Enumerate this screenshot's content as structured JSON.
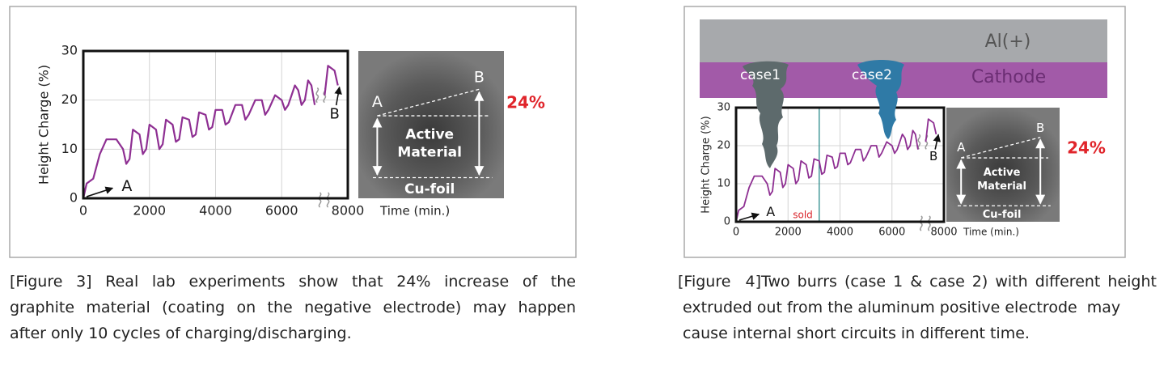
{
  "chart_data": [
    {
      "type": "line",
      "ylabel": "Height Charge (%)",
      "xlabel": "Time (min.)",
      "x": [
        0,
        100,
        300,
        500,
        700,
        1000,
        1200,
        1300,
        1400,
        1500,
        1700,
        1800,
        1900,
        2000,
        2200,
        2300,
        2400,
        2500,
        2700,
        2800,
        2900,
        3000,
        3200,
        3300,
        3400,
        3500,
        3700,
        3800,
        3900,
        4000,
        4200,
        4300,
        4400,
        4600,
        4800,
        4900,
        5000,
        5200,
        5400,
        5500,
        5600,
        5800,
        6000,
        6100,
        6200,
        6400,
        6500,
        6600,
        6700,
        6800,
        6900,
        7000,
        7100,
        7300,
        7400,
        7600,
        7700
      ],
      "series": [
        {
          "color": "#8e2f92",
          "values": [
            0,
            3,
            4,
            9,
            12,
            12,
            10,
            7,
            8,
            14,
            13,
            9,
            10,
            15,
            14,
            10,
            11,
            16,
            15,
            11.5,
            12,
            16.5,
            16,
            12.5,
            13,
            17.5,
            17,
            14,
            14.5,
            18,
            18,
            15,
            15.5,
            19,
            19,
            16,
            17,
            20,
            20,
            17,
            18,
            21,
            20,
            18,
            19,
            23,
            22,
            19,
            20,
            24,
            23,
            19,
            null,
            21,
            27,
            26,
            23
          ]
        }
      ],
      "xlim": [
        0,
        8000
      ],
      "ylim": [
        0,
        30
      ],
      "xticks": [
        0,
        2000,
        4000,
        6000,
        8000
      ],
      "yticks": [
        0,
        10,
        20,
        30
      ],
      "grid": true,
      "annotations": [
        "A",
        "B"
      ],
      "inset": {
        "start": "A",
        "end": "B",
        "layer": [
          "Active",
          "Material"
        ],
        "base": "Cu-foil",
        "increase": "24%"
      }
    },
    {
      "type": "line",
      "ylabel": "Height Charge (%)",
      "xlabel": "Time (min.)",
      "x": [
        0,
        100,
        300,
        500,
        700,
        1000,
        1200,
        1300,
        1400,
        1500,
        1700,
        1800,
        1900,
        2000,
        2200,
        2300,
        2400,
        2500,
        2700,
        2800,
        2900,
        3000,
        3200,
        3300,
        3400,
        3500,
        3700,
        3800,
        3900,
        4000,
        4200,
        4300,
        4400,
        4600,
        4800,
        4900,
        5000,
        5200,
        5400,
        5500,
        5600,
        5800,
        6000,
        6100,
        6200,
        6400,
        6500,
        6600,
        6700,
        6800,
        6900,
        7000,
        7100,
        7300,
        7400,
        7600,
        7700
      ],
      "series": [
        {
          "color": "#8e2f92",
          "values": [
            0,
            3,
            4,
            9,
            12,
            12,
            10,
            7,
            8,
            14,
            13,
            9,
            10,
            15,
            14,
            10,
            11,
            16,
            15,
            11.5,
            12,
            16.5,
            16,
            12.5,
            13,
            17.5,
            17,
            14,
            14.5,
            18,
            18,
            15,
            15.5,
            19,
            19,
            16,
            17,
            20,
            20,
            17,
            18,
            21,
            20,
            18,
            19,
            23,
            22,
            19,
            20,
            24,
            23,
            19,
            null,
            21,
            27,
            26,
            23
          ]
        }
      ],
      "xlim": [
        0,
        8000
      ],
      "ylim": [
        0,
        30
      ],
      "xticks": [
        0,
        2000,
        4000,
        6000,
        8000
      ],
      "yticks": [
        0,
        10,
        20,
        30
      ],
      "grid": true,
      "annotations": [
        "A",
        "B"
      ],
      "marker": {
        "x": 3200,
        "label": "sold"
      },
      "inset": {
        "start": "A",
        "end": "B",
        "layer": [
          "Active",
          "Material"
        ],
        "base": "Cu-foil",
        "increase": "24%"
      }
    }
  ],
  "figures": [
    {
      "label": "[Figure 3]",
      "caption": [
        "Real lab experiments show that 24% increase of the",
        "graphite material (coating on the negative electrode) may happen",
        "after only 10 cycles of charging/discharging."
      ]
    },
    {
      "label": "[Figure  4]",
      "caption": [
        "Two burrs (case 1 & case 2) with different height",
        " extruded out from the aluminum positive electrode  may",
        " cause internal short circuits in different time."
      ],
      "layers": [
        "Al(+)",
        "Cathode"
      ],
      "burrs": [
        "case1",
        "case2"
      ]
    }
  ]
}
